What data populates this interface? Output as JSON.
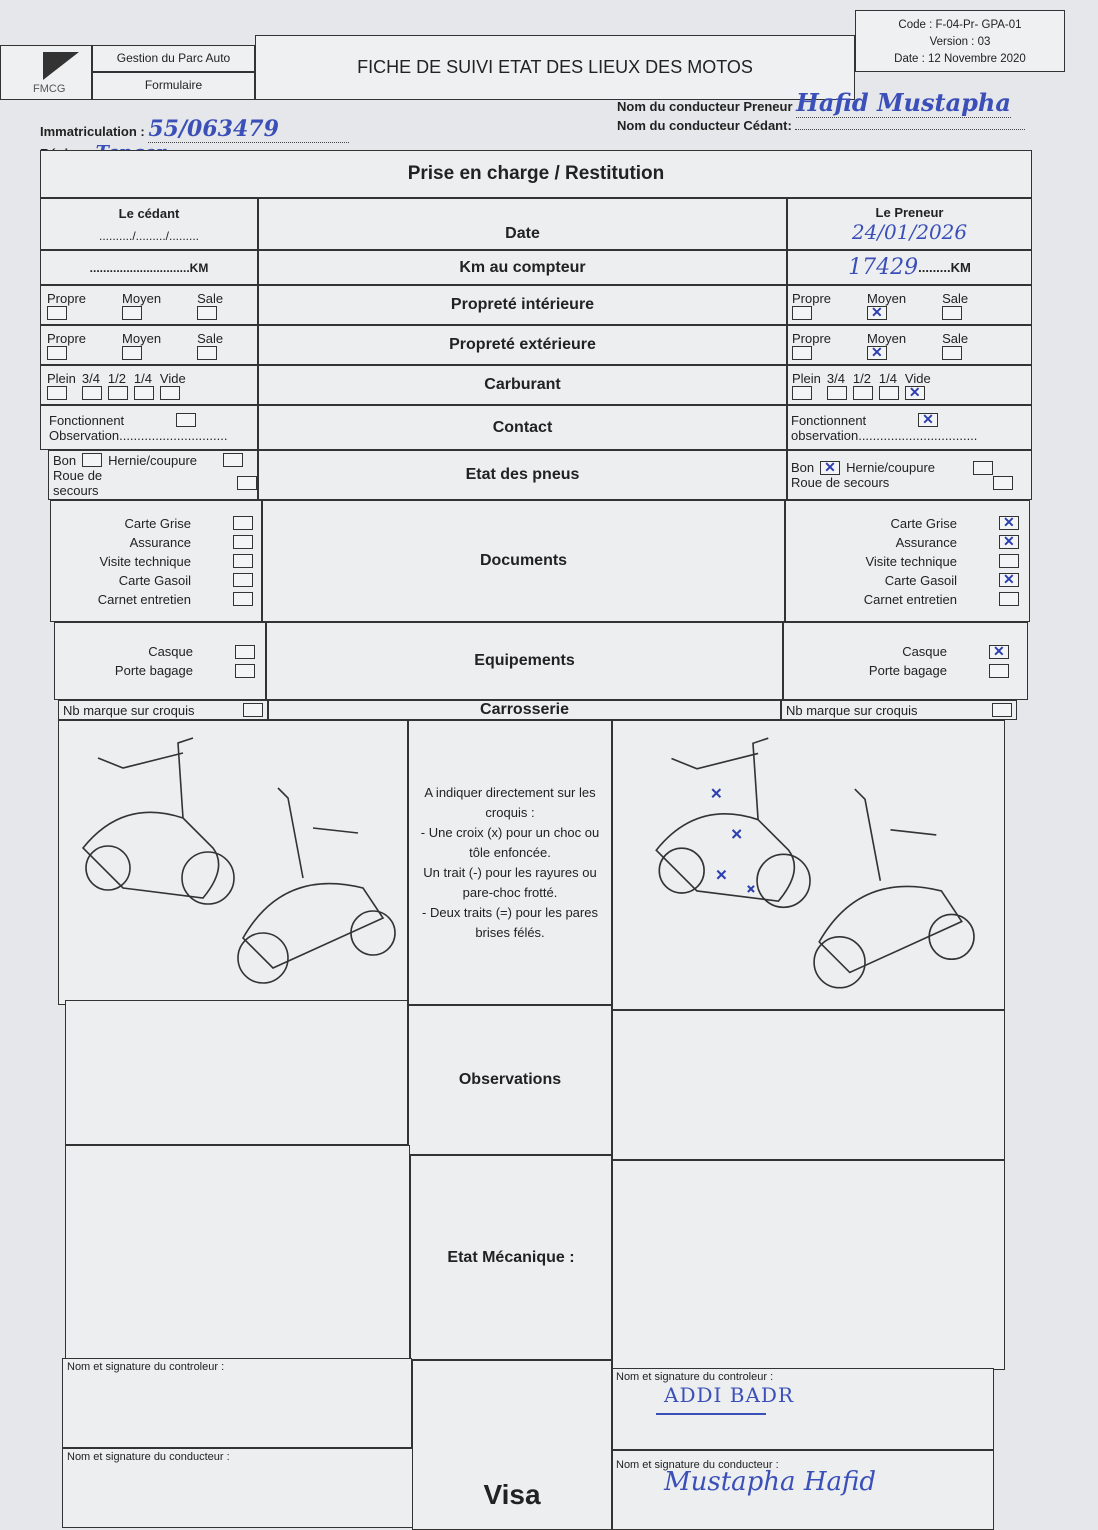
{
  "header": {
    "logo_text": "FMCG",
    "dept": "Gestion du Parc Auto",
    "type": "Formulaire",
    "title": "FICHE DE SUIVI ETAT DES LIEUX DES MOTOS",
    "code": "Code : F-04-Pr- GPA-01",
    "version": "Version : 03",
    "date": "Date : 12 Novembre 2020"
  },
  "info": {
    "immat_label": "Immatriculation :",
    "immat_value": "55/063479",
    "region_label": "Région :",
    "region_value": "Tanger",
    "preneur_label": "Nom du conducteur Preneur",
    "preneur_value": "Hafid Mustapha",
    "cedant_label": "Nom du conducteur Cédant:",
    "cedant_value": ""
  },
  "table": {
    "title": "Prise en charge / Restitution",
    "left_header": "Le cédant",
    "right_header": "Le Preneur",
    "labels": {
      "date": "Date",
      "km": "Km au compteur",
      "prop_int": "Propreté intérieure",
      "prop_ext": "Propreté extérieure",
      "carburant": "Carburant",
      "contact": "Contact",
      "pneus": "Etat des pneus",
      "documents": "Documents",
      "equipements": "Equipements",
      "carrosserie": "Carrosserie",
      "observations": "Observations",
      "mecanique": "Etat Mécanique  :",
      "visa": "Visa"
    },
    "cedant": {
      "date": "........../........./.........",
      "km": "..............................KM",
      "fonctionnent": "Fonctionnent",
      "observation": "Observation..............................",
      "nb_marque": "Nb marque sur croquis"
    },
    "preneur": {
      "date": "24/01/2026",
      "km": "17429",
      "km_unit": "KM",
      "fonctionnent": "Fonctionnent",
      "observation": "observation.................................",
      "nb_marque": "Nb marque sur croquis"
    },
    "propreté_options": [
      "Propre",
      "Moyen",
      "Sale"
    ],
    "fuel_options": [
      "Plein",
      "3/4",
      "1/2",
      "1/4",
      "Vide"
    ],
    "tyre": {
      "bon": "Bon",
      "hernie": "Hernie/coupure",
      "roue": "Roue de secours"
    },
    "documents": [
      "Carte Grise",
      "Assurance",
      "Visite technique",
      "Carte Gasoil",
      "Carnet entretien"
    ],
    "equipements": [
      "Casque",
      "Porte bagage"
    ],
    "checked": {
      "cedant": {},
      "preneur": {
        "prop_int": "Moyen",
        "prop_ext": "Moyen",
        "carburant": "Vide",
        "fonctionnent": true,
        "bon": true,
        "documents": [
          true,
          true,
          false,
          true,
          false
        ],
        "equipements": [
          true,
          false
        ]
      }
    },
    "instructions": [
      "A indiquer directement sur les croquis :",
      "- Une croix (x) pour un choc ou tôle enfoncée.",
      "Un trait (-) pour les rayures ou pare-choc frotté.",
      "- Deux traits (=) pour les pares brises félés."
    ],
    "sig_controleur": "Nom et signature du controleur :",
    "sig_conducteur": "Nom et signature du conducteur :",
    "preneur_controleur": "ADDI BADR",
    "preneur_conducteur": "Mustapha Hafid"
  }
}
